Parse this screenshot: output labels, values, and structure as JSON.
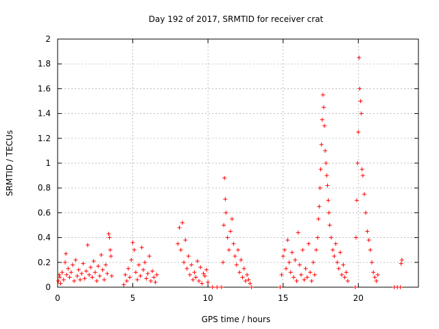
{
  "chart_data": {
    "type": "scatter",
    "title": "Day 192 of 2017, SRMTID for receiver crat",
    "xlabel": "GPS time / hours",
    "ylabel": "SRMTID / TECUs",
    "xlim": [
      0,
      24
    ],
    "ylim": [
      0,
      2
    ],
    "x_ticks": [
      0,
      5,
      10,
      15,
      20
    ],
    "y_ticks": [
      0,
      0.2,
      0.4,
      0.6,
      0.8,
      1,
      1.2,
      1.4,
      1.6,
      1.8,
      2
    ],
    "x_tick_labels": [
      "0",
      "5",
      "10",
      "15",
      "20"
    ],
    "y_tick_labels": [
      "0",
      "0.2",
      "0.4",
      "0.6",
      "0.8",
      "1",
      "1.2",
      "1.4",
      "1.6",
      "1.8",
      "2"
    ],
    "grid": true,
    "marker": "+",
    "color": "#ff0000",
    "series": [
      {
        "name": "SRMTID",
        "x": [
          0.05,
          0.1,
          0.15,
          0.2,
          0.3,
          0.4,
          0.5,
          0.55,
          0.6,
          0.7,
          0.8,
          0.9,
          1.0,
          1.1,
          1.2,
          1.3,
          1.4,
          1.5,
          1.6,
          1.7,
          1.8,
          1.9,
          2.0,
          2.1,
          2.2,
          2.3,
          2.4,
          2.5,
          2.6,
          2.7,
          2.8,
          2.9,
          3.0,
          3.1,
          3.2,
          3.3,
          3.4,
          3.45,
          3.5,
          3.55,
          3.6,
          4.4,
          4.5,
          4.6,
          4.7,
          4.8,
          4.9,
          5.0,
          5.1,
          5.2,
          5.3,
          5.4,
          5.5,
          5.6,
          5.7,
          5.8,
          5.9,
          6.0,
          6.1,
          6.2,
          6.3,
          6.4,
          6.5,
          6.6,
          8.0,
          8.1,
          8.2,
          8.3,
          8.4,
          8.5,
          8.6,
          8.7,
          8.8,
          8.9,
          9.0,
          9.1,
          9.2,
          9.3,
          9.4,
          9.5,
          9.6,
          9.7,
          9.8,
          9.9,
          10.0,
          10.3,
          10.6,
          10.9,
          11.0,
          11.05,
          11.1,
          11.15,
          11.2,
          11.3,
          11.4,
          11.5,
          11.6,
          11.7,
          11.8,
          11.9,
          12.0,
          12.1,
          12.2,
          12.3,
          12.4,
          12.5,
          12.6,
          12.7,
          12.8,
          12.9,
          14.8,
          14.9,
          15.0,
          15.1,
          15.2,
          15.3,
          15.4,
          15.5,
          15.6,
          15.7,
          15.8,
          15.9,
          16.0,
          16.1,
          16.2,
          16.3,
          16.4,
          16.5,
          16.6,
          16.7,
          16.8,
          16.9,
          17.0,
          17.1,
          17.2,
          17.3,
          17.35,
          17.4,
          17.45,
          17.5,
          17.55,
          17.6,
          17.65,
          17.7,
          17.75,
          17.8,
          17.85,
          17.9,
          17.95,
          18.0,
          18.05,
          18.1,
          18.2,
          18.3,
          18.4,
          18.5,
          18.6,
          18.7,
          18.8,
          18.9,
          19.0,
          19.1,
          19.2,
          19.3,
          19.8,
          19.85,
          19.9,
          19.95,
          20.0,
          20.05,
          20.1,
          20.15,
          20.2,
          20.25,
          20.3,
          20.4,
          20.5,
          20.6,
          20.7,
          20.8,
          20.9,
          21.0,
          21.1,
          21.2,
          21.3,
          22.4,
          22.6,
          22.8,
          22.85,
          22.9
        ],
        "y": [
          0.05,
          0.1,
          0.08,
          0.03,
          0.12,
          0.06,
          0.2,
          0.27,
          0.1,
          0.15,
          0.08,
          0.12,
          0.18,
          0.05,
          0.22,
          0.09,
          0.14,
          0.06,
          0.11,
          0.19,
          0.07,
          0.13,
          0.34,
          0.1,
          0.16,
          0.08,
          0.21,
          0.12,
          0.05,
          0.17,
          0.09,
          0.26,
          0.14,
          0.06,
          0.18,
          0.11,
          0.43,
          0.4,
          0.3,
          0.25,
          0.09,
          0.02,
          0.1,
          0.05,
          0.15,
          0.08,
          0.22,
          0.36,
          0.3,
          0.12,
          0.06,
          0.18,
          0.09,
          0.32,
          0.14,
          0.2,
          0.07,
          0.11,
          0.25,
          0.05,
          0.13,
          0.08,
          0.04,
          0.1,
          0.35,
          0.48,
          0.3,
          0.52,
          0.2,
          0.38,
          0.15,
          0.25,
          0.1,
          0.18,
          0.06,
          0.12,
          0.08,
          0.21,
          0.05,
          0.16,
          0.03,
          0.11,
          0.09,
          0.14,
          0.04,
          0.0,
          0.0,
          0.0,
          0.2,
          0.5,
          0.88,
          0.71,
          0.6,
          0.4,
          0.3,
          0.45,
          0.55,
          0.35,
          0.25,
          0.18,
          0.3,
          0.12,
          0.22,
          0.08,
          0.15,
          0.05,
          0.1,
          0.06,
          0.03,
          0.0,
          0.0,
          0.1,
          0.25,
          0.3,
          0.15,
          0.38,
          0.2,
          0.12,
          0.28,
          0.08,
          0.22,
          0.05,
          0.44,
          0.18,
          0.1,
          0.3,
          0.06,
          0.15,
          0.08,
          0.35,
          0.12,
          0.05,
          0.2,
          0.1,
          0.3,
          0.4,
          0.55,
          0.65,
          0.8,
          0.95,
          1.15,
          1.35,
          1.55,
          1.45,
          1.3,
          1.1,
          1.0,
          0.9,
          0.82,
          0.7,
          0.6,
          0.5,
          0.4,
          0.3,
          0.25,
          0.35,
          0.2,
          0.15,
          0.28,
          0.1,
          0.18,
          0.08,
          0.12,
          0.05,
          0.0,
          0.4,
          0.7,
          1.0,
          1.25,
          1.85,
          1.6,
          1.5,
          1.4,
          0.95,
          0.9,
          0.75,
          0.6,
          0.45,
          0.38,
          0.3,
          0.2,
          0.12,
          0.08,
          0.05,
          0.1,
          0.0,
          0.0,
          0.0,
          0.19,
          0.22
        ]
      }
    ]
  }
}
